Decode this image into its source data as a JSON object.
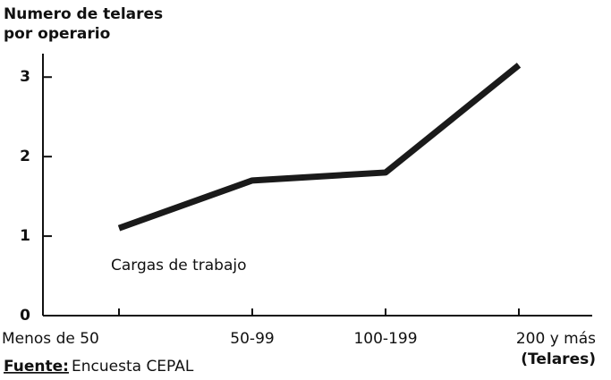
{
  "chart_data": {
    "type": "line",
    "y_label": [
      "Numero de telares",
      "por operario"
    ],
    "categories": [
      "Menos de 50",
      "50-99",
      "100-199",
      "200 y más"
    ],
    "x_label": "(Telares)",
    "values": [
      1.1,
      1.7,
      1.8,
      3.15
    ],
    "color": "#1a1a1a",
    "ylim": [
      0,
      3.25
    ],
    "yticks": [
      0,
      1,
      2,
      3
    ],
    "annotation": "Cargas de trabajo",
    "source_label": "Fuente:",
    "source_text": "Encuesta CEPAL"
  }
}
